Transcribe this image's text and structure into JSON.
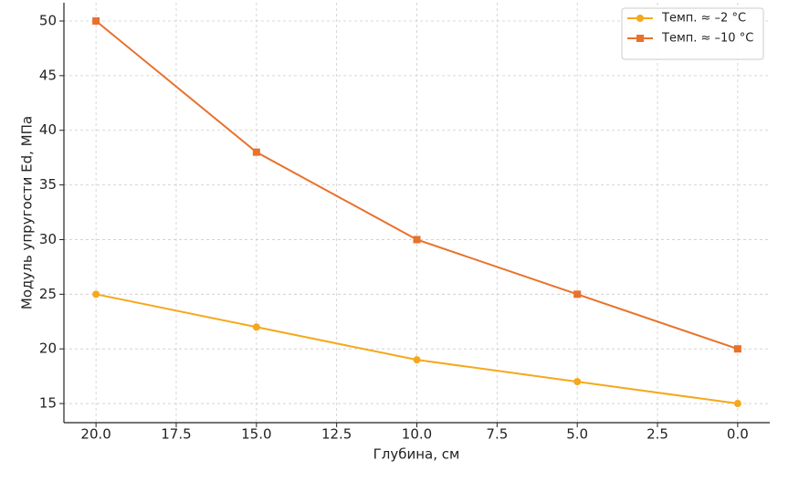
{
  "chart_data": {
    "type": "line",
    "xlabel": "Глубина, см",
    "ylabel": "Модуль упругости Ed, МПа",
    "x": [
      20,
      15,
      10,
      5,
      0
    ],
    "series": [
      {
        "name": "Темп. ≈ –2 °C",
        "color": "#f5a81c",
        "marker": "circle",
        "values": [
          25,
          22,
          19,
          17,
          15
        ]
      },
      {
        "name": "Темп. ≈ –10 °C",
        "color": "#e8712b",
        "marker": "square",
        "values": [
          50,
          38,
          30,
          25,
          20
        ]
      }
    ],
    "xlim": [
      21,
      -1
    ],
    "xticks": [
      {
        "value": 20,
        "label": "20.0"
      },
      17.5,
      {
        "value": 15,
        "label": "15.0"
      },
      12.5,
      {
        "value": 10,
        "label": "10.0"
      },
      7.5,
      {
        "value": 5,
        "label": "5.0"
      },
      2.5,
      {
        "value": 0,
        "label": "0.0"
      }
    ],
    "ylim": [
      13.25,
      51.67
    ],
    "yticks": [
      15,
      20,
      25,
      30,
      35,
      40,
      45,
      50
    ],
    "grid": true,
    "legend": "upper right"
  }
}
